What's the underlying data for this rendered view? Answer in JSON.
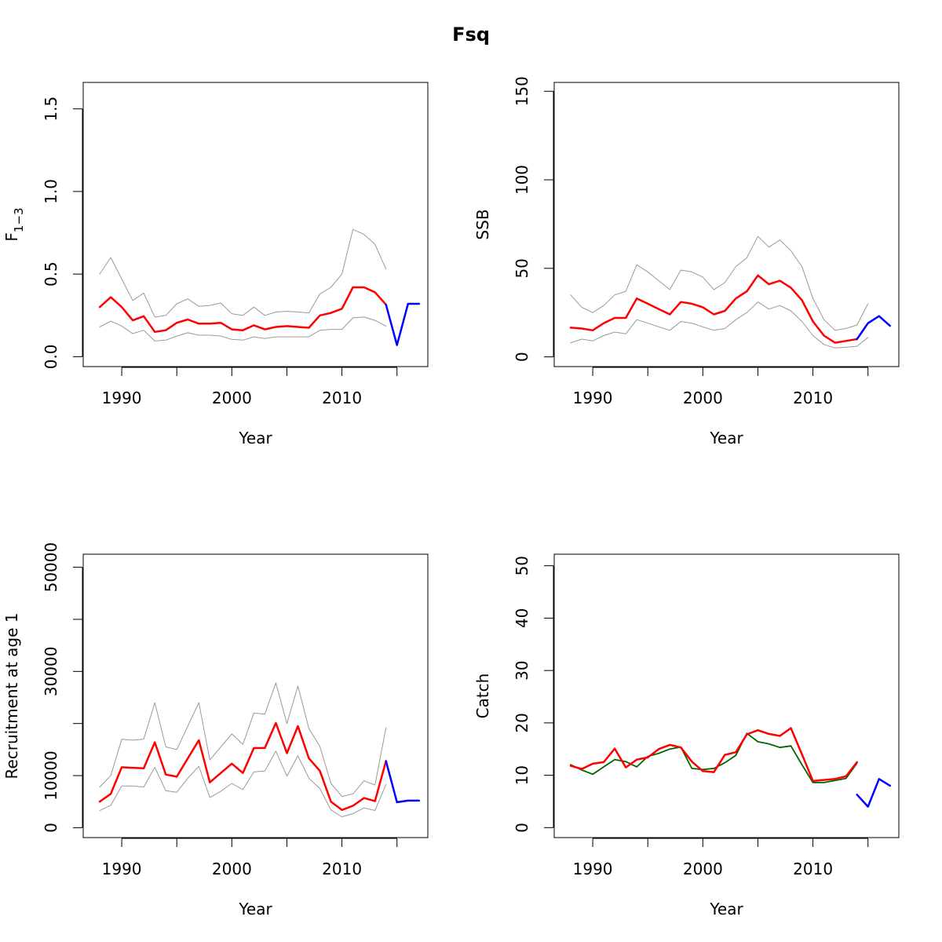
{
  "title": "Fsq",
  "chart_data": [
    {
      "type": "line",
      "xlabel": "Year",
      "ylabel": "F1−3",
      "ylabel_main": "F",
      "ylabel_sub": "1−3",
      "xlim": [
        1986.5,
        2017.8
      ],
      "ylim": [
        -0.06,
        1.66
      ],
      "xticks": [
        1990,
        1995,
        2000,
        2005,
        2010,
        2015
      ],
      "xticklabels": [
        "1990",
        "",
        "2000",
        "",
        "2010",
        ""
      ],
      "yticks": [
        0.0,
        0.5,
        1.0,
        1.5
      ],
      "yticklabels": [
        "0.0",
        "0.5",
        "1.0",
        "1.5"
      ],
      "series": [
        {
          "color": "#999999",
          "width": 1,
          "x": [
            1988,
            1989,
            1990,
            1991,
            1992,
            1993,
            1994,
            1995,
            1996,
            1997,
            1998,
            1999,
            2000,
            2001,
            2002,
            2003,
            2004,
            2005,
            2006,
            2007,
            2008,
            2009,
            2010,
            2011,
            2012,
            2013,
            2014
          ],
          "values": [
            0.5,
            0.6,
            0.47,
            0.34,
            0.385,
            0.24,
            0.25,
            0.32,
            0.35,
            0.305,
            0.31,
            0.325,
            0.26,
            0.25,
            0.3,
            0.25,
            0.27,
            0.275,
            0.27,
            0.265,
            0.38,
            0.42,
            0.5,
            0.77,
            0.74,
            0.68,
            0.53
          ]
        },
        {
          "color": "#999999",
          "width": 1,
          "x": [
            1988,
            1989,
            1990,
            1991,
            1992,
            1993,
            1994,
            1995,
            1996,
            1997,
            1998,
            1999,
            2000,
            2001,
            2002,
            2003,
            2004,
            2005,
            2006,
            2007,
            2008,
            2009,
            2010,
            2011,
            2012,
            2013,
            2014
          ],
          "values": [
            0.18,
            0.215,
            0.185,
            0.14,
            0.16,
            0.095,
            0.1,
            0.125,
            0.145,
            0.13,
            0.13,
            0.125,
            0.105,
            0.1,
            0.12,
            0.11,
            0.12,
            0.12,
            0.12,
            0.12,
            0.16,
            0.165,
            0.165,
            0.235,
            0.24,
            0.22,
            0.185
          ]
        },
        {
          "color": "#ff0000",
          "width": 2.5,
          "x": [
            1988,
            1989,
            1990,
            1991,
            1992,
            1993,
            1994,
            1995,
            1996,
            1997,
            1998,
            1999,
            2000,
            2001,
            2002,
            2003,
            2004,
            2005,
            2006,
            2007,
            2008,
            2009,
            2010,
            2011,
            2012,
            2013,
            2014
          ],
          "values": [
            0.3,
            0.36,
            0.3,
            0.22,
            0.245,
            0.15,
            0.16,
            0.205,
            0.225,
            0.2,
            0.2,
            0.205,
            0.165,
            0.16,
            0.19,
            0.165,
            0.18,
            0.185,
            0.18,
            0.175,
            0.25,
            0.265,
            0.29,
            0.42,
            0.42,
            0.39,
            0.315
          ]
        },
        {
          "color": "#0000ff",
          "width": 2.5,
          "x": [
            2014,
            2015,
            2016,
            2017
          ],
          "values": [
            0.315,
            0.07,
            0.32,
            0.32
          ]
        }
      ]
    },
    {
      "type": "line",
      "xlabel": "Year",
      "ylabel": "SSB",
      "xlim": [
        1986.5,
        2017.8
      ],
      "ylim": [
        -5.5,
        155
      ],
      "xticks": [
        1990,
        1995,
        2000,
        2005,
        2010,
        2015
      ],
      "xticklabels": [
        "1990",
        "",
        "2000",
        "",
        "2010",
        ""
      ],
      "yticks": [
        0,
        50,
        100,
        150
      ],
      "yticklabels": [
        "0",
        "50",
        "100",
        "150"
      ],
      "series": [
        {
          "color": "#999999",
          "width": 1,
          "x": [
            1988,
            1989,
            1990,
            1991,
            1992,
            1993,
            1994,
            1995,
            1996,
            1997,
            1998,
            1999,
            2000,
            2001,
            2002,
            2003,
            2004,
            2005,
            2006,
            2007,
            2008,
            2009,
            2010,
            2011,
            2012,
            2013,
            2014,
            2015
          ],
          "values": [
            35,
            28,
            25,
            29,
            35,
            37,
            52,
            48,
            43,
            38,
            49,
            48,
            45,
            38,
            42,
            51,
            56,
            68,
            62,
            66,
            60,
            51,
            33,
            21,
            15,
            16,
            18,
            30
          ]
        },
        {
          "color": "#999999",
          "width": 1,
          "x": [
            1988,
            1989,
            1990,
            1991,
            1992,
            1993,
            1994,
            1995,
            1996,
            1997,
            1998,
            1999,
            2000,
            2001,
            2002,
            2003,
            2004,
            2005,
            2006,
            2007,
            2008,
            2009,
            2010,
            2011,
            2012,
            2013,
            2014,
            2015
          ],
          "values": [
            8,
            10,
            9,
            12,
            14,
            13,
            21,
            19,
            17,
            15,
            20,
            19,
            17,
            15,
            16,
            21,
            25,
            31,
            27,
            29,
            26,
            20,
            12,
            7,
            5,
            5.5,
            6,
            11
          ]
        },
        {
          "color": "#ff0000",
          "width": 2.5,
          "x": [
            1988,
            1989,
            1990,
            1991,
            1992,
            1993,
            1994,
            1995,
            1996,
            1997,
            1998,
            1999,
            2000,
            2001,
            2002,
            2003,
            2004,
            2005,
            2006,
            2007,
            2008,
            2009,
            2010,
            2011,
            2012,
            2013,
            2014
          ],
          "values": [
            16.5,
            16,
            15,
            19,
            22,
            22,
            33,
            30,
            27,
            24,
            31,
            30,
            28,
            24,
            26,
            33,
            37,
            46,
            41,
            43,
            39,
            32,
            20,
            12,
            8,
            9,
            10
          ]
        },
        {
          "color": "#0000ff",
          "width": 2.5,
          "x": [
            2014,
            2015,
            2016,
            2017
          ],
          "values": [
            10,
            19,
            23,
            17.5
          ]
        }
      ]
    },
    {
      "type": "line",
      "xlabel": "Year",
      "ylabel": "Recruitment at age 1",
      "xlim": [
        1986.5,
        2017.8
      ],
      "ylim": [
        -1900,
        52500
      ],
      "xticks": [
        1990,
        1995,
        2000,
        2005,
        2010,
        2015
      ],
      "xticklabels": [
        "1990",
        "",
        "2000",
        "",
        "2010",
        ""
      ],
      "yticks": [
        0,
        10000,
        20000,
        30000,
        40000,
        50000
      ],
      "yticklabels": [
        "0",
        "10000",
        "",
        "30000",
        "",
        "50000"
      ],
      "series": [
        {
          "color": "#999999",
          "width": 1,
          "x": [
            1988,
            1989,
            1990,
            1991,
            1992,
            1993,
            1994,
            1995,
            1996,
            1997,
            1998,
            1999,
            2000,
            2001,
            2002,
            2003,
            2004,
            2005,
            2006,
            2007,
            2008,
            2009,
            2010,
            2011,
            2012,
            2013,
            2014
          ],
          "values": [
            7800,
            10000,
            17000,
            16800,
            17000,
            24000,
            15500,
            15000,
            19500,
            24000,
            13000,
            15500,
            18000,
            16000,
            22000,
            21800,
            27800,
            20000,
            27200,
            19000,
            15600,
            8500,
            6000,
            6500,
            9000,
            8200,
            19200
          ]
        },
        {
          "color": "#999999",
          "width": 1,
          "x": [
            1988,
            1989,
            1990,
            1991,
            1992,
            1993,
            1994,
            1995,
            1996,
            1997,
            1998,
            1999,
            2000,
            2001,
            2002,
            2003,
            2004,
            2005,
            2006,
            2007,
            2008,
            2009,
            2010,
            2011,
            2012,
            2013,
            2014
          ],
          "values": [
            3300,
            4300,
            8000,
            8000,
            7800,
            11600,
            7100,
            6800,
            9500,
            11800,
            5800,
            7000,
            8500,
            7300,
            10700,
            10900,
            14700,
            9900,
            13800,
            9500,
            7500,
            3400,
            2100,
            2700,
            3800,
            3300,
            8300
          ]
        },
        {
          "color": "#ff0000",
          "width": 2.5,
          "x": [
            1988,
            1989,
            1990,
            1991,
            1992,
            1993,
            1994,
            1995,
            1996,
            1997,
            1998,
            1999,
            2000,
            2001,
            2002,
            2003,
            2004,
            2005,
            2006,
            2007,
            2008,
            2009,
            2010,
            2011,
            2012,
            2013,
            2014
          ],
          "values": [
            5000,
            6500,
            11600,
            11500,
            11400,
            16400,
            10200,
            9800,
            13300,
            16800,
            8700,
            10500,
            12300,
            10500,
            15300,
            15300,
            20100,
            14300,
            19500,
            13300,
            10900,
            5000,
            3400,
            4200,
            5700,
            5100,
            12800
          ]
        },
        {
          "color": "#0000ff",
          "width": 2.5,
          "x": [
            2014,
            2015,
            2016,
            2017
          ],
          "values": [
            12800,
            4900,
            5200,
            5200
          ]
        }
      ]
    },
    {
      "type": "line",
      "xlabel": "Year",
      "ylabel": "Catch",
      "xlim": [
        1986.5,
        2017.8
      ],
      "ylim": [
        -1.9,
        52.2
      ],
      "xticks": [
        1990,
        1995,
        2000,
        2005,
        2010,
        2015
      ],
      "xticklabels": [
        "1990",
        "",
        "2000",
        "",
        "2010",
        ""
      ],
      "yticks": [
        0,
        10,
        20,
        30,
        40,
        50
      ],
      "yticklabels": [
        "0",
        "10",
        "20",
        "30",
        "40",
        "50"
      ],
      "series": [
        {
          "color": "#006400",
          "width": 1.8,
          "x": [
            1988,
            1989,
            1990,
            1991,
            1992,
            1993,
            1994,
            1995,
            1996,
            1997,
            1998,
            1999,
            2000,
            2001,
            2002,
            2003,
            2004,
            2005,
            2006,
            2007,
            2008,
            2009,
            2010,
            2011,
            2012,
            2013,
            2014
          ],
          "values": [
            12,
            11,
            10.2,
            11.6,
            13,
            12.6,
            11.6,
            13.6,
            14.2,
            15,
            15.4,
            11.3,
            11.1,
            11.3,
            12.4,
            13.8,
            18,
            16.4,
            16,
            15.3,
            15.6,
            12,
            8.6,
            8.6,
            9,
            9.4,
            12.3
          ]
        },
        {
          "color": "#ff0000",
          "width": 2.5,
          "x": [
            1988,
            1989,
            1990,
            1991,
            1992,
            1993,
            1994,
            1995,
            1996,
            1997,
            1998,
            1999,
            2000,
            2001,
            2002,
            2003,
            2004,
            2005,
            2006,
            2007,
            2008,
            2009,
            2010,
            2011,
            2012,
            2013,
            2014
          ],
          "values": [
            11.8,
            11.2,
            12.2,
            12.5,
            15.1,
            11.5,
            13,
            13.4,
            15,
            15.8,
            15.3,
            12.6,
            10.8,
            10.6,
            13.9,
            14.4,
            17.8,
            18.6,
            17.9,
            17.5,
            19,
            14,
            8.9,
            9.1,
            9.3,
            9.8,
            12.5
          ]
        },
        {
          "color": "#0000ff",
          "width": 2.5,
          "x": [
            2014,
            2015,
            2016,
            2017
          ],
          "values": [
            6.3,
            4,
            9.3,
            8
          ]
        }
      ]
    }
  ]
}
